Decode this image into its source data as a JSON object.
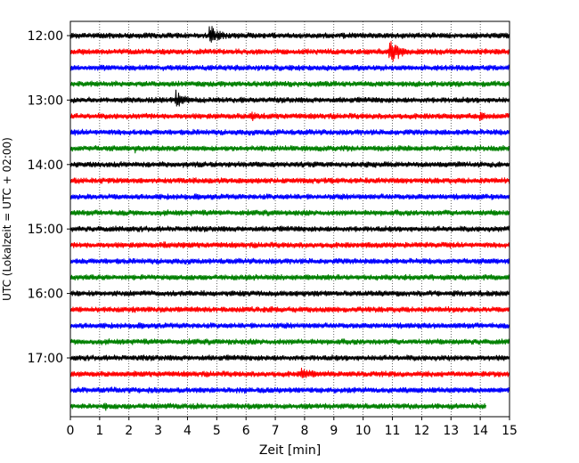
{
  "chart_data": {
    "type": "line",
    "title": "",
    "xlabel": "Zeit  [min]",
    "ylabel": "UTC (Lokalzeit = UTC + 02:00)",
    "xlim": [
      0,
      15
    ],
    "xticks": [
      0,
      1,
      2,
      3,
      4,
      5,
      6,
      7,
      8,
      9,
      10,
      11,
      12,
      13,
      14,
      15
    ],
    "grid": "vertical dotted lines at each minute",
    "yticks": [
      {
        "label": "12:00",
        "row": 0
      },
      {
        "label": "13:00",
        "row": 4
      },
      {
        "label": "14:00",
        "row": 8
      },
      {
        "label": "15:00",
        "row": 12
      },
      {
        "label": "16:00",
        "row": 16
      },
      {
        "label": "17:00",
        "row": 20
      }
    ],
    "row_interval_minutes": 15,
    "color_cycle": [
      "#000000",
      "#ff0000",
      "#0000ff",
      "#008000"
    ],
    "traces": [
      {
        "start": "12:00",
        "end_min": 15,
        "events": [
          {
            "t": 4.75,
            "amp": 14,
            "dur": 1.8
          },
          {
            "t": 12.4,
            "amp": 10,
            "dur": 0.2
          }
        ]
      },
      {
        "start": "12:15",
        "end_min": 15,
        "events": [
          {
            "t": 10.9,
            "amp": 18,
            "dur": 1.2
          },
          {
            "t": 10.5,
            "amp": 6,
            "dur": 0.3
          }
        ]
      },
      {
        "start": "12:30",
        "end_min": 15,
        "events": []
      },
      {
        "start": "12:45",
        "end_min": 15,
        "events": [
          {
            "t": 14.5,
            "amp": 6,
            "dur": 0.2
          }
        ]
      },
      {
        "start": "13:00",
        "end_min": 15,
        "events": [
          {
            "t": 3.6,
            "amp": 14,
            "dur": 1.0
          },
          {
            "t": 2.3,
            "amp": 6,
            "dur": 0.5
          },
          {
            "t": 6.8,
            "amp": 6,
            "dur": 0.2
          }
        ]
      },
      {
        "start": "13:15",
        "end_min": 15,
        "events": [
          {
            "t": 6.2,
            "amp": 10,
            "dur": 0.6
          },
          {
            "t": 14.0,
            "amp": 10,
            "dur": 0.7
          },
          {
            "t": 12.5,
            "amp": 5,
            "dur": 0.2
          }
        ]
      },
      {
        "start": "13:30",
        "end_min": 15,
        "events": []
      },
      {
        "start": "13:45",
        "end_min": 15,
        "events": [
          {
            "t": 2.2,
            "amp": 8,
            "dur": 0.15
          }
        ]
      },
      {
        "start": "14:00",
        "end_min": 15,
        "events": [
          {
            "t": 12.6,
            "amp": 5,
            "dur": 0.6
          }
        ]
      },
      {
        "start": "14:15",
        "end_min": 15,
        "events": [
          {
            "t": 11.5,
            "amp": 5,
            "dur": 0.8
          }
        ]
      },
      {
        "start": "14:30",
        "end_min": 15,
        "events": [
          {
            "t": 13.6,
            "amp": 8,
            "dur": 0.1
          }
        ]
      },
      {
        "start": "14:45",
        "end_min": 15,
        "events": [
          {
            "t": 7.3,
            "amp": 4,
            "dur": 0.3
          }
        ]
      },
      {
        "start": "15:00",
        "end_min": 15,
        "events": []
      },
      {
        "start": "15:15",
        "end_min": 15,
        "events": [
          {
            "t": 3.2,
            "amp": 7,
            "dur": 0.7
          }
        ]
      },
      {
        "start": "15:30",
        "end_min": 15,
        "events": [
          {
            "t": 4.6,
            "amp": 4,
            "dur": 0.4
          }
        ]
      },
      {
        "start": "15:45",
        "end_min": 15,
        "events": [
          {
            "t": 0.55,
            "amp": 7,
            "dur": 0.1
          }
        ]
      },
      {
        "start": "16:00",
        "end_min": 15,
        "events": []
      },
      {
        "start": "16:15",
        "end_min": 15,
        "events": [
          {
            "t": 7.5,
            "amp": 4,
            "dur": 0.5
          }
        ]
      },
      {
        "start": "16:30",
        "end_min": 15,
        "events": [
          {
            "t": 12.2,
            "amp": 4,
            "dur": 0.3
          }
        ]
      },
      {
        "start": "16:45",
        "end_min": 15,
        "events": []
      },
      {
        "start": "17:00",
        "end_min": 15,
        "events": [
          {
            "t": 12.8,
            "amp": 3,
            "dur": 0.3
          }
        ]
      },
      {
        "start": "17:15",
        "end_min": 15,
        "events": [
          {
            "t": 7.9,
            "amp": 12,
            "dur": 1.3
          },
          {
            "t": 12.9,
            "amp": 4,
            "dur": 0.4
          }
        ]
      },
      {
        "start": "17:30",
        "end_min": 15,
        "events": [
          {
            "t": 5.95,
            "amp": 8,
            "dur": 0.15
          },
          {
            "t": 2.3,
            "amp": 4,
            "dur": 0.3
          }
        ]
      },
      {
        "start": "17:45",
        "end_min": 14.2,
        "events": [
          {
            "t": 1.2,
            "amp": 14,
            "dur": 0.15
          },
          {
            "t": 2.5,
            "amp": 4,
            "dur": 0.2
          }
        ]
      }
    ]
  }
}
